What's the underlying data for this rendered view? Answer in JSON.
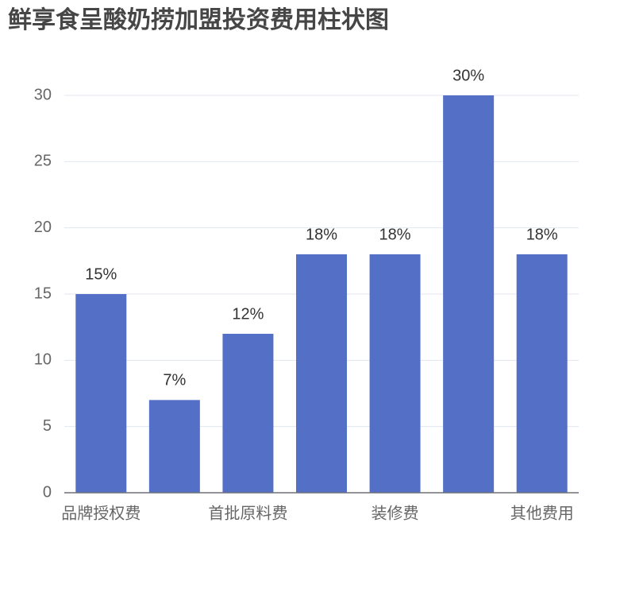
{
  "chart_data": {
    "type": "bar",
    "title": "鲜享食呈酸奶捞加盟投资费用柱状图",
    "categories": [
      "品牌授权费",
      null,
      "首批原料费",
      null,
      "装修费",
      null,
      "其他费用"
    ],
    "values": [
      15,
      7,
      12,
      18,
      18,
      30,
      18
    ],
    "value_labels": [
      "15%",
      "7%",
      "12%",
      "18%",
      "18%",
      "30%",
      "18%"
    ],
    "color": "#5470c6",
    "ylim": [
      0,
      30
    ],
    "yticks": [
      0,
      5,
      10,
      15,
      20,
      25,
      30
    ],
    "grid": true
  }
}
